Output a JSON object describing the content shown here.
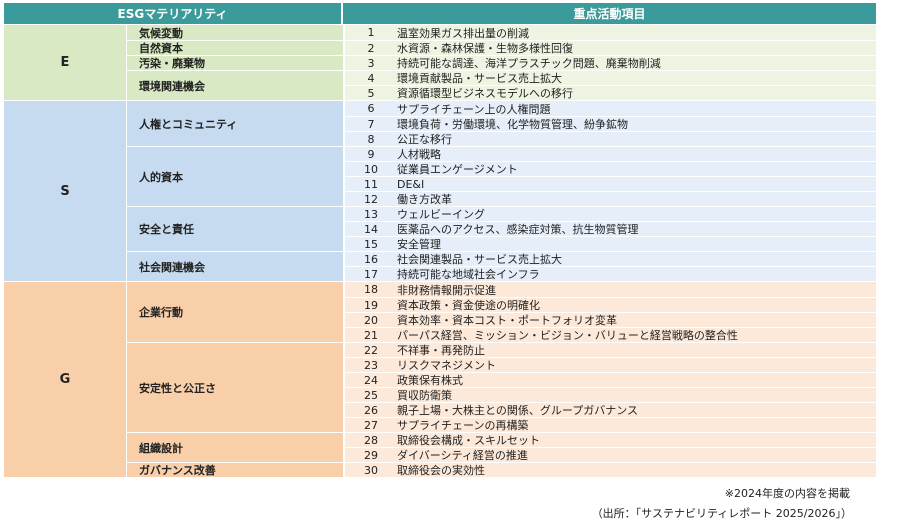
{
  "header": {
    "left": "ESGマテリアリティ",
    "right": "重点活動項目"
  },
  "colors": {
    "header": "#3b9a9a"
  },
  "groups": [
    {
      "category": "E",
      "cat_color": "#d9e9c3",
      "cell_color": "#edf5e2",
      "materialities": [
        {
          "name": "気候変動",
          "items": [
            {
              "no": "1",
              "text": "温室効果ガス排出量の削減"
            }
          ]
        },
        {
          "name": "自然資本",
          "items": [
            {
              "no": "2",
              "text": "水資源・森林保護・生物多様性回復"
            }
          ]
        },
        {
          "name": "汚染・廃棄物",
          "items": [
            {
              "no": "3",
              "text": "持続可能な調達、海洋プラスチック問題、廃棄物削減"
            }
          ]
        },
        {
          "name": "環境関連機会",
          "items": [
            {
              "no": "4",
              "text": "環境貢献製品・サービス売上拡大"
            },
            {
              "no": "5",
              "text": "資源循環型ビジネスモデルへの移行"
            }
          ]
        }
      ]
    },
    {
      "category": "S",
      "cat_color": "#c6daf0",
      "cell_color": "#e6eff9",
      "materialities": [
        {
          "name": "人権とコミュニティ",
          "items": [
            {
              "no": "6",
              "text": "サプライチェーン上の人権問題"
            },
            {
              "no": "7",
              "text": "環境負荷・労働環境、化学物質管理、紛争鉱物"
            },
            {
              "no": "8",
              "text": "公正な移行"
            }
          ]
        },
        {
          "name": "人的資本",
          "items": [
            {
              "no": "9",
              "text": "人材戦略"
            },
            {
              "no": "10",
              "text": "従業員エンゲージメント"
            },
            {
              "no": "11",
              "text": "DE&I"
            },
            {
              "no": "12",
              "text": "働き方改革"
            }
          ]
        },
        {
          "name": "安全と責任",
          "items": [
            {
              "no": "13",
              "text": "ウェルビーイング"
            },
            {
              "no": "14",
              "text": "医薬品へのアクセス、感染症対策、抗生物質管理"
            },
            {
              "no": "15",
              "text": "安全管理"
            }
          ]
        },
        {
          "name": "社会関連機会",
          "items": [
            {
              "no": "16",
              "text": "社会関連製品・サービス売上拡大"
            },
            {
              "no": "17",
              "text": "持続可能な地域社会インフラ"
            }
          ]
        }
      ]
    },
    {
      "category": "G",
      "cat_color": "#f9cfa9",
      "cell_color": "#fde9d9",
      "materialities": [
        {
          "name": "企業行動",
          "items": [
            {
              "no": "18",
              "text": "非財務情報開示促進"
            },
            {
              "no": "19",
              "text": "資本政策・資金使途の明確化"
            },
            {
              "no": "20",
              "text": "資本効率・資本コスト・ポートフォリオ変革"
            },
            {
              "no": "21",
              "text": "パーパス経営、ミッション・ビジョン・バリューと経営戦略の整合性"
            }
          ]
        },
        {
          "name": "安定性と公正さ",
          "items": [
            {
              "no": "22",
              "text": "不祥事・再発防止"
            },
            {
              "no": "23",
              "text": "リスクマネジメント"
            },
            {
              "no": "24",
              "text": "政策保有株式"
            },
            {
              "no": "25",
              "text": "買収防衛策"
            },
            {
              "no": "26",
              "text": "親子上場・大株主との関係、グループガバナンス"
            },
            {
              "no": "27",
              "text": "サプライチェーンの再構築"
            }
          ]
        },
        {
          "name": "組織設計",
          "items": [
            {
              "no": "28",
              "text": "取締役会構成・スキルセット"
            },
            {
              "no": "29",
              "text": "ダイバーシティ経営の推進"
            }
          ]
        },
        {
          "name": "ガバナンス改善",
          "items": [
            {
              "no": "30",
              "text": "取締役会の実効性"
            }
          ]
        }
      ]
    }
  ],
  "notes": {
    "note": "※2024年度の内容を掲載",
    "source": "（出所：「サステナビリティレポート 2025/2026」）"
  }
}
